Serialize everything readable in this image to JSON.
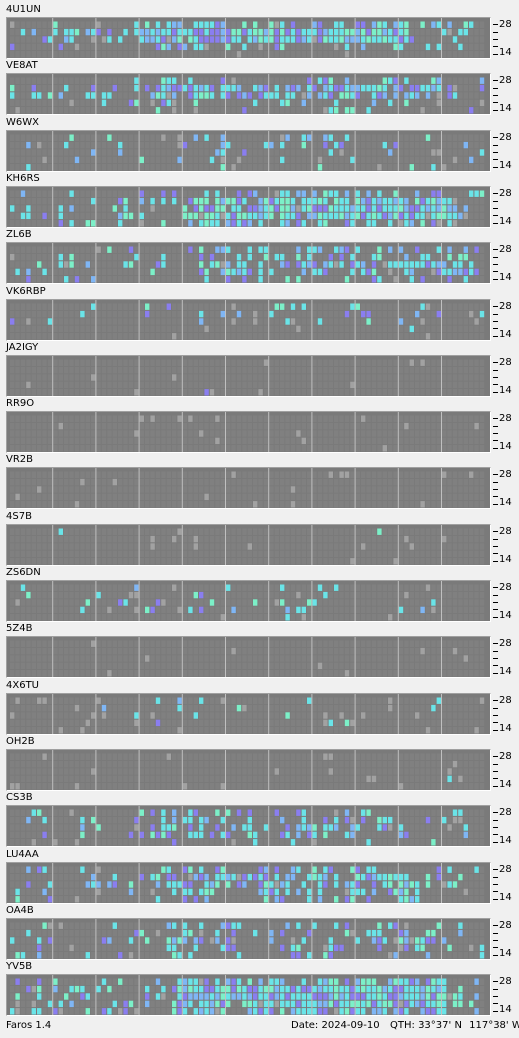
{
  "app": {
    "name": "Faros 1.4"
  },
  "status": {
    "date_label": "Date:",
    "date_value": "2024-09-10",
    "qth_label": "QTH:",
    "qth_lat": "33°37' N",
    "qth_lon": "117°38' W"
  },
  "scale_labels": {
    "top": "28",
    "bottom": "14"
  },
  "colors": {
    "background": "#f0f0f0",
    "cell_empty": "#808080",
    "cell_light": "#a2a2a2",
    "grid_line": "#c0c0c0",
    "heard_weak": "#7fb6f5",
    "heard_medium": "#6ae4e8",
    "heard_strong": "#7cf0c8",
    "heard_purple": "#8a7ef0"
  },
  "stations": [
    {
      "call": "4U1UN",
      "activity": 0.9,
      "bands": [
        0.0,
        0.4,
        0.8,
        1.0
      ]
    },
    {
      "call": "VE8AT",
      "activity": 0.65,
      "bands": [
        0.2,
        0.5,
        0.7,
        0.9
      ]
    },
    {
      "call": "W6WX",
      "activity": 0.3,
      "bands": [
        0.2,
        0.4,
        0.6,
        0.7
      ]
    },
    {
      "call": "KH6RS",
      "activity": 0.75,
      "bands": [
        0.6,
        0.9,
        1.0,
        0.9
      ]
    },
    {
      "call": "ZL6B",
      "activity": 0.6,
      "bands": [
        0.5,
        0.8,
        0.9,
        0.6
      ]
    },
    {
      "call": "VK6RBP",
      "activity": 0.25,
      "bands": [
        0.0,
        0.1,
        0.4,
        0.6
      ]
    },
    {
      "call": "JA2IGY",
      "activity": 0.02,
      "bands": [
        0.3,
        0.0,
        0.0,
        0.0
      ]
    },
    {
      "call": "RR9O",
      "activity": 0.02,
      "bands": [
        0.0,
        0.0,
        0.3,
        0.0
      ]
    },
    {
      "call": "VR2B",
      "activity": 0.02,
      "bands": [
        0.0,
        0.0,
        0.2,
        0.3
      ]
    },
    {
      "call": "4S7B",
      "activity": 0.01,
      "bands": [
        0.3,
        0.0,
        0.0,
        0.0
      ]
    },
    {
      "call": "ZS6DN",
      "activity": 0.2,
      "bands": [
        0.2,
        0.5,
        0.7,
        0.4
      ]
    },
    {
      "call": "5Z4B",
      "activity": 0.0,
      "bands": [
        0.0,
        0.0,
        0.0,
        0.0
      ]
    },
    {
      "call": "4X6TU",
      "activity": 0.1,
      "bands": [
        0.2,
        0.5,
        0.6,
        0.3
      ]
    },
    {
      "call": "OH2B",
      "activity": 0.01,
      "bands": [
        0.0,
        0.3,
        0.0,
        0.0
      ]
    },
    {
      "call": "CS3B",
      "activity": 0.45,
      "bands": [
        0.2,
        0.6,
        0.8,
        0.7
      ]
    },
    {
      "call": "LU4AA",
      "activity": 0.55,
      "bands": [
        0.5,
        0.7,
        0.9,
        1.0
      ]
    },
    {
      "call": "OA4B",
      "activity": 0.4,
      "bands": [
        0.4,
        0.6,
        0.8,
        0.6
      ]
    },
    {
      "call": "YV5B",
      "activity": 0.85,
      "bands": [
        0.7,
        0.9,
        1.0,
        1.0
      ]
    }
  ]
}
